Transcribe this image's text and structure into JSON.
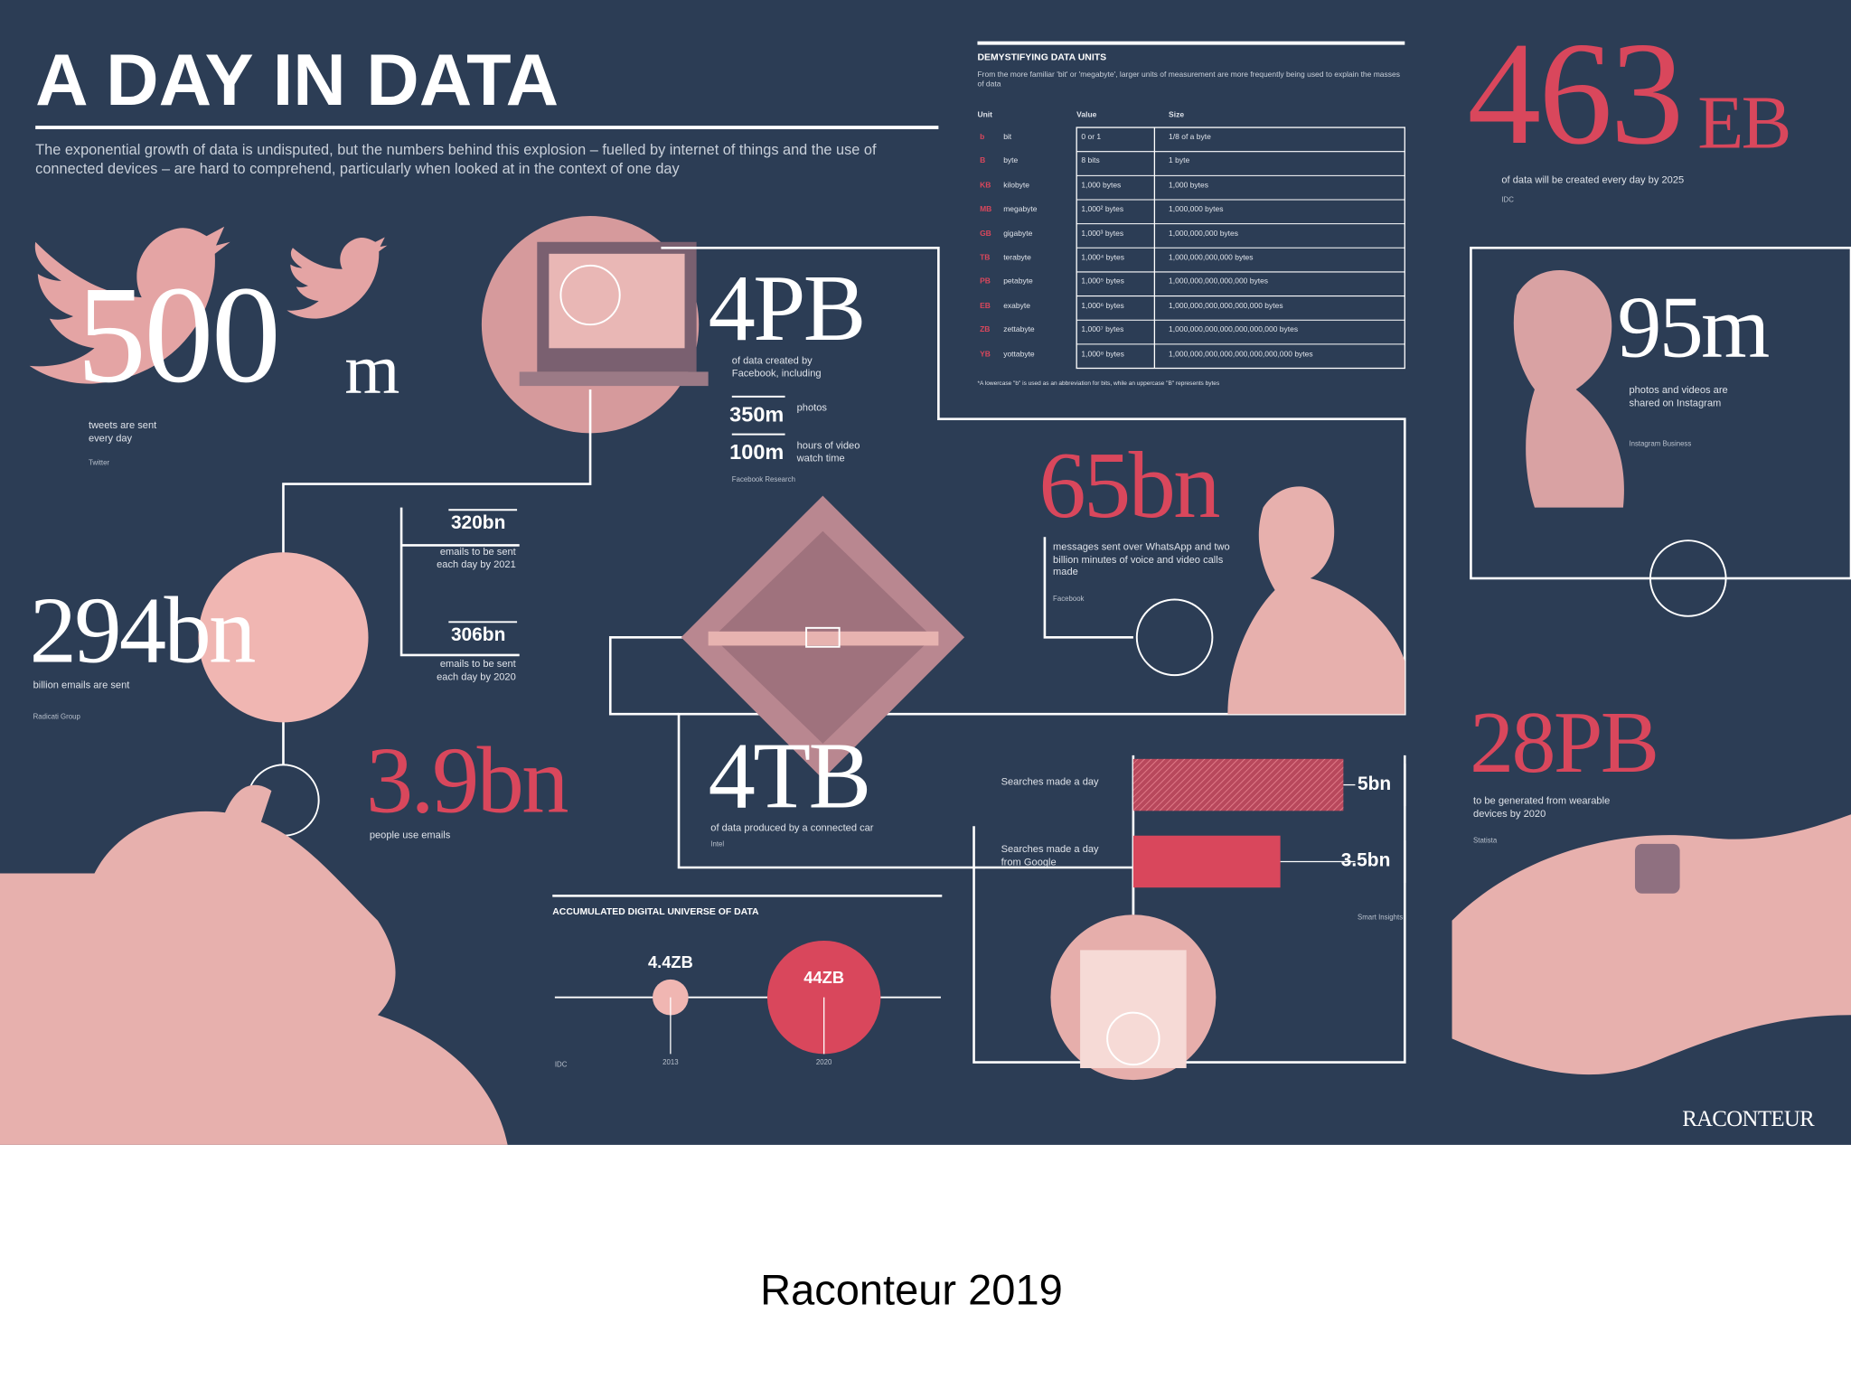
{
  "header": {
    "title": "A DAY IN DATA",
    "intro": "The exponential growth of data is undisputed, but the numbers behind this explosion – fuelled by internet of things and the use of connected devices – are hard to comprehend, particularly when looked at in the context of one day"
  },
  "twitter": {
    "number": "500",
    "unit": "m",
    "caption": "tweets are sent every day",
    "source": "Twitter"
  },
  "facebook": {
    "number": "4PB",
    "caption": "of data created by Facebook, including",
    "items": [
      {
        "figure": "350m",
        "text": "photos"
      },
      {
        "figure": "100m",
        "text": "hours of video watch time"
      }
    ],
    "source": "Facebook Research"
  },
  "emails": {
    "number": "294bn",
    "caption": "billion emails are sent",
    "source": "Radicati Group",
    "items": [
      {
        "figure": "320bn",
        "text": "emails to be sent each day by 2021"
      },
      {
        "figure": "306bn",
        "text": "emails to be sent each day by 2020"
      }
    ]
  },
  "email_users": {
    "number": "3.9bn",
    "caption": "people use emails"
  },
  "car": {
    "number": "4TB",
    "caption": "of data produced by a connected car",
    "source": "Intel"
  },
  "whatsapp": {
    "number": "65bn",
    "caption": "messages sent over WhatsApp and two billion minutes of voice and video calls made",
    "source": "Facebook"
  },
  "units": {
    "title": "DEMYSTIFYING DATA UNITS",
    "intro": "From the more familiar 'bit' or 'megabyte', larger units of measurement are more frequently being used to explain the masses of data",
    "headers": [
      "Unit",
      "Value",
      "Size"
    ],
    "rows": [
      [
        "b",
        "bit",
        "0 or 1",
        "1/8 of a byte"
      ],
      [
        "B",
        "byte",
        "8 bits",
        "1 byte"
      ],
      [
        "KB",
        "kilobyte",
        "1,000 bytes",
        "1,000 bytes"
      ],
      [
        "MB",
        "megabyte",
        "1,000² bytes",
        "1,000,000 bytes"
      ],
      [
        "GB",
        "gigabyte",
        "1,000³ bytes",
        "1,000,000,000 bytes"
      ],
      [
        "TB",
        "terabyte",
        "1,000⁴ bytes",
        "1,000,000,000,000 bytes"
      ],
      [
        "PB",
        "petabyte",
        "1,000⁵ bytes",
        "1,000,000,000,000,000 bytes"
      ],
      [
        "EB",
        "exabyte",
        "1,000⁶ bytes",
        "1,000,000,000,000,000,000 bytes"
      ],
      [
        "ZB",
        "zettabyte",
        "1,000⁷ bytes",
        "1,000,000,000,000,000,000,000 bytes"
      ],
      [
        "YB",
        "yottabyte",
        "1,000⁸ bytes",
        "1,000,000,000,000,000,000,000,000 bytes"
      ]
    ],
    "note": "*A lowercase \"b\" is used as an abbreviation for bits, while an uppercase \"B\" represents bytes"
  },
  "daily": {
    "number": "463",
    "unit": "EB",
    "caption": "of data will be created every day by 2025",
    "source": "IDC"
  },
  "instagram": {
    "number": "95m",
    "caption": "photos and videos are shared on Instagram",
    "source": "Instagram Business"
  },
  "wearables": {
    "number": "28PB",
    "caption": "to be generated from wearable devices by 2020",
    "source": "Statista"
  },
  "searches": {
    "items": [
      {
        "label": "Searches made a day",
        "value": 5,
        "value_label": "5bn"
      },
      {
        "label": "Searches made a day from Google",
        "value": 3.5,
        "value_label": "3.5bn"
      }
    ],
    "source": "Smart Insights"
  },
  "universe": {
    "title": "ACCUMULATED DIGITAL UNIVERSE OF DATA",
    "items": [
      {
        "year": "2013",
        "value": 4.4,
        "value_label": "4.4ZB"
      },
      {
        "year": "2020",
        "value": 44,
        "value_label": "44ZB"
      }
    ],
    "source": "IDC"
  },
  "footer": {
    "brand": "RACONTEUR",
    "caption": "Raconteur 2019"
  }
}
